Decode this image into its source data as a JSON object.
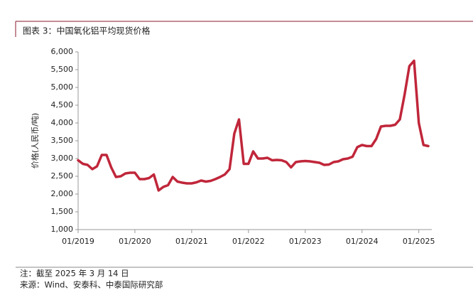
{
  "chart_data": {
    "type": "line",
    "title": "图表 3：中国氧化铝平均现货价格",
    "y_label": "价格(人民币/吨)",
    "color": "#c0263a",
    "x": [
      "01/2019",
      "02/2019",
      "03/2019",
      "04/2019",
      "05/2019",
      "06/2019",
      "07/2019",
      "08/2019",
      "09/2019",
      "10/2019",
      "11/2019",
      "12/2019",
      "01/2020",
      "02/2020",
      "03/2020",
      "04/2020",
      "05/2020",
      "06/2020",
      "07/2020",
      "08/2020",
      "09/2020",
      "10/2020",
      "11/2020",
      "12/2020",
      "01/2021",
      "02/2021",
      "03/2021",
      "04/2021",
      "05/2021",
      "06/2021",
      "07/2021",
      "08/2021",
      "09/2021",
      "10/2021",
      "11/2021",
      "12/2021",
      "01/2022",
      "02/2022",
      "03/2022",
      "04/2022",
      "05/2022",
      "06/2022",
      "07/2022",
      "08/2022",
      "09/2022",
      "10/2022",
      "11/2022",
      "12/2022",
      "01/2023",
      "02/2023",
      "03/2023",
      "04/2023",
      "05/2023",
      "06/2023",
      "07/2023",
      "08/2023",
      "09/2023",
      "10/2023",
      "11/2023",
      "12/2023",
      "01/2024",
      "02/2024",
      "03/2024",
      "04/2024",
      "05/2024",
      "06/2024",
      "07/2024",
      "08/2024",
      "09/2024",
      "10/2024",
      "11/2024",
      "12/2024",
      "01/2025",
      "02/2025",
      "03/2025"
    ],
    "values": [
      2950,
      2850,
      2820,
      2700,
      2780,
      3100,
      3100,
      2750,
      2480,
      2500,
      2580,
      2600,
      2600,
      2420,
      2420,
      2450,
      2550,
      2100,
      2200,
      2250,
      2480,
      2350,
      2320,
      2300,
      2300,
      2330,
      2380,
      2350,
      2370,
      2420,
      2480,
      2550,
      2700,
      3700,
      4100,
      2850,
      2850,
      3200,
      3000,
      3000,
      3020,
      2950,
      2960,
      2950,
      2900,
      2750,
      2900,
      2920,
      2930,
      2920,
      2900,
      2880,
      2820,
      2830,
      2900,
      2920,
      2980,
      3000,
      3050,
      3320,
      3380,
      3350,
      3350,
      3550,
      3900,
      3920,
      3920,
      3950,
      4100,
      4800,
      5600,
      5750,
      4000,
      3380,
      3350
    ],
    "xlim": [
      "01/2019",
      "03/2025"
    ],
    "xticks": [
      "01/2019",
      "01/2020",
      "01/2021",
      "01/2022",
      "01/2023",
      "01/2024",
      "01/2025"
    ],
    "ylim": [
      1000,
      6000
    ],
    "yticks": [
      {
        "value": 1000,
        "label": "1,000"
      },
      {
        "value": 1500,
        "label": "1,500"
      },
      {
        "value": 2000,
        "label": "2,000"
      },
      {
        "value": 2500,
        "label": "2,500"
      },
      {
        "value": 3000,
        "label": "3,000"
      },
      {
        "value": 3500,
        "label": "3,500"
      },
      {
        "value": 4000,
        "label": "4,000"
      },
      {
        "value": 4500,
        "label": "4,500"
      },
      {
        "value": 5000,
        "label": "5,000"
      },
      {
        "value": 5500,
        "label": "5,500"
      },
      {
        "value": 6000,
        "label": "6,000"
      }
    ],
    "notes": [
      "注：截至 2025 年 3 月 14 日",
      "来源：Wind、安泰科、中泰国际研究部"
    ]
  }
}
